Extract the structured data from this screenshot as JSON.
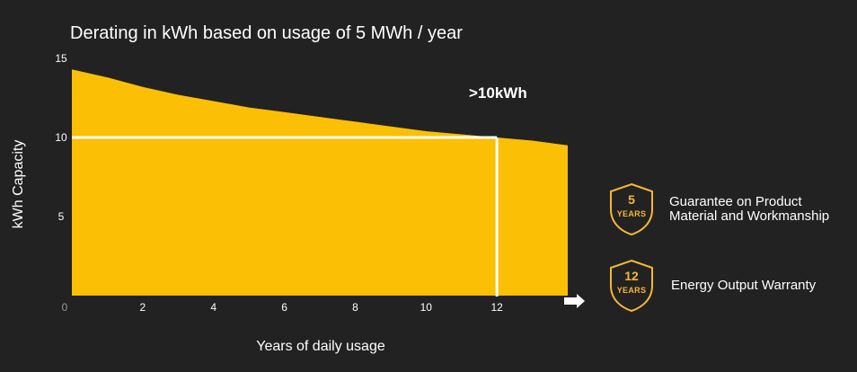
{
  "chart_data": {
    "type": "area",
    "title": "Derating in kWh based on usage of 5 MWh / year",
    "xlabel": "Years of daily usage",
    "ylabel": "kWh Capacity",
    "xlim": [
      0,
      14
    ],
    "ylim": [
      0,
      15
    ],
    "x_ticks": [
      "0",
      "2",
      "4",
      "6",
      "8",
      "10",
      "12"
    ],
    "y_ticks": [
      "5",
      "10",
      "15"
    ],
    "x": [
      0,
      1,
      2,
      3,
      4,
      5,
      6,
      7,
      8,
      9,
      10,
      11,
      12,
      13,
      14
    ],
    "values": [
      14.3,
      13.8,
      13.2,
      12.7,
      12.3,
      11.9,
      11.6,
      11.3,
      11.0,
      10.7,
      10.4,
      10.2,
      10.0,
      9.8,
      9.5
    ],
    "fill_color": "#fbbf05",
    "reference": {
      "x": 12,
      "y": 10,
      "label": ">10kWh",
      "color": "#ffffff"
    }
  },
  "badges": [
    {
      "number": "5",
      "unit": "YEARS",
      "text_line1": "Guarantee on Product",
      "text_line2": "Material and Workmanship"
    },
    {
      "number": "12",
      "unit": "YEARS",
      "text_line1": "Energy Output Warranty",
      "text_line2": ""
    }
  ],
  "badge_color": "#f7b733"
}
